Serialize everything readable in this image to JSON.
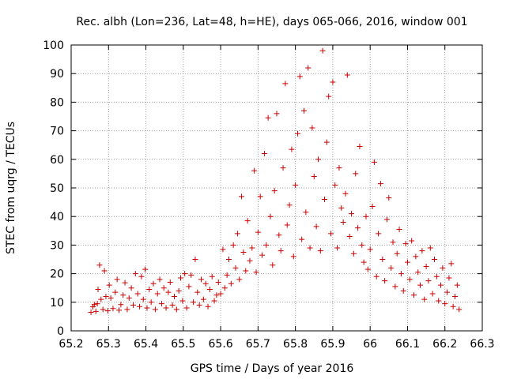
{
  "chart_data": {
    "type": "scatter",
    "title": "Rec. albh (Lon=236, Lat=48, h=HE), days 065-066, 2016, window 001",
    "xlabel": "GPS time / Days of year 2016",
    "ylabel": "STEC from uqrg / TECUs",
    "xlim": [
      65.2,
      66.3
    ],
    "ylim": [
      0,
      100
    ],
    "xticks": [
      "65.2",
      "65.3",
      "65.4",
      "65.5",
      "65.6",
      "65.7",
      "65.8",
      "65.9",
      "66",
      "66.1",
      "66.2",
      "66.3"
    ],
    "yticks": [
      "0",
      "10",
      "20",
      "30",
      "40",
      "50",
      "60",
      "70",
      "80",
      "90",
      "100"
    ],
    "grid": true,
    "marker": "+",
    "series": [
      {
        "color": "#cc0000",
        "points": [
          [
            65.253,
            6.5
          ],
          [
            65.258,
            8.4
          ],
          [
            65.262,
            9.2
          ],
          [
            65.266,
            6.8
          ],
          [
            65.27,
            9.5
          ],
          [
            65.272,
            14.5
          ],
          [
            65.276,
            23.0
          ],
          [
            65.28,
            11.0
          ],
          [
            65.285,
            7.5
          ],
          [
            65.289,
            21.0
          ],
          [
            65.293,
            12.0
          ],
          [
            65.298,
            7.0
          ],
          [
            65.302,
            16.0
          ],
          [
            65.306,
            11.5
          ],
          [
            65.312,
            7.8
          ],
          [
            65.318,
            13.5
          ],
          [
            65.323,
            18.0
          ],
          [
            65.328,
            7.2
          ],
          [
            65.333,
            9.2
          ],
          [
            65.339,
            12.5
          ],
          [
            65.344,
            16.8
          ],
          [
            65.35,
            7.5
          ],
          [
            65.355,
            11.5
          ],
          [
            65.361,
            15.0
          ],
          [
            65.366,
            9.0
          ],
          [
            65.372,
            20.0
          ],
          [
            65.378,
            13.0
          ],
          [
            65.383,
            8.5
          ],
          [
            65.388,
            19.0
          ],
          [
            65.393,
            11.0
          ],
          [
            65.398,
            21.5
          ],
          [
            65.403,
            8.0
          ],
          [
            65.409,
            14.5
          ],
          [
            65.414,
            10.0
          ],
          [
            65.42,
            16.5
          ],
          [
            65.425,
            7.5
          ],
          [
            65.431,
            13.0
          ],
          [
            65.437,
            18.0
          ],
          [
            65.442,
            9.5
          ],
          [
            65.448,
            15.0
          ],
          [
            65.454,
            8.0
          ],
          [
            65.46,
            13.5
          ],
          [
            65.465,
            17.0
          ],
          [
            65.471,
            9.0
          ],
          [
            65.476,
            12.0
          ],
          [
            65.482,
            7.5
          ],
          [
            65.488,
            14.0
          ],
          [
            65.493,
            18.5
          ],
          [
            65.498,
            10.5
          ],
          [
            65.504,
            20.0
          ],
          [
            65.509,
            8.0
          ],
          [
            65.515,
            15.5
          ],
          [
            65.521,
            19.5
          ],
          [
            65.527,
            10.0
          ],
          [
            65.532,
            25.0
          ],
          [
            65.538,
            13.5
          ],
          [
            65.543,
            9.0
          ],
          [
            65.548,
            18.0
          ],
          [
            65.554,
            11.0
          ],
          [
            65.56,
            16.5
          ],
          [
            65.566,
            8.5
          ],
          [
            65.571,
            14.5
          ],
          [
            65.577,
            19.0
          ],
          [
            65.583,
            10.5
          ],
          [
            65.589,
            12.5
          ],
          [
            65.594,
            17.0
          ],
          [
            65.6,
            13.0
          ],
          [
            65.606,
            28.5
          ],
          [
            65.611,
            15.0
          ],
          [
            65.617,
            19.5
          ],
          [
            65.622,
            25.0
          ],
          [
            65.628,
            16.5
          ],
          [
            65.634,
            30.0
          ],
          [
            65.64,
            22.0
          ],
          [
            65.645,
            34.0
          ],
          [
            65.65,
            18.0
          ],
          [
            65.656,
            47.0
          ],
          [
            65.661,
            27.5
          ],
          [
            65.667,
            21.0
          ],
          [
            65.672,
            38.5
          ],
          [
            65.678,
            24.5
          ],
          [
            65.684,
            29.0
          ],
          [
            65.69,
            56.0
          ],
          [
            65.695,
            20.5
          ],
          [
            65.7,
            34.5
          ],
          [
            65.706,
            47.0
          ],
          [
            65.711,
            26.5
          ],
          [
            65.717,
            62.0
          ],
          [
            65.722,
            30.0
          ],
          [
            65.727,
            74.5
          ],
          [
            65.733,
            40.0
          ],
          [
            65.739,
            23.0
          ],
          [
            65.744,
            49.0
          ],
          [
            65.75,
            76.0
          ],
          [
            65.756,
            33.5
          ],
          [
            65.761,
            28.0
          ],
          [
            65.767,
            57.0
          ],
          [
            65.773,
            86.5
          ],
          [
            65.778,
            37.0
          ],
          [
            65.784,
            44.0
          ],
          [
            65.79,
            63.5
          ],
          [
            65.795,
            26.0
          ],
          [
            65.8,
            51.0
          ],
          [
            65.806,
            69.0
          ],
          [
            65.812,
            89.0
          ],
          [
            65.817,
            32.0
          ],
          [
            65.823,
            77.0
          ],
          [
            65.828,
            41.5
          ],
          [
            65.834,
            92.0
          ],
          [
            65.839,
            29.0
          ],
          [
            65.845,
            71.0
          ],
          [
            65.85,
            54.0
          ],
          [
            65.856,
            36.5
          ],
          [
            65.861,
            60.0
          ],
          [
            65.867,
            28.0
          ],
          [
            65.873,
            98.0
          ],
          [
            65.878,
            46.0
          ],
          [
            65.884,
            66.0
          ],
          [
            65.889,
            82.0
          ],
          [
            65.895,
            34.0
          ],
          [
            65.9,
            87.0
          ],
          [
            65.906,
            51.0
          ],
          [
            65.912,
            29.0
          ],
          [
            65.917,
            57.0
          ],
          [
            65.923,
            43.0
          ],
          [
            65.928,
            38.0
          ],
          [
            65.934,
            48.0
          ],
          [
            65.939,
            89.5
          ],
          [
            65.945,
            33.0
          ],
          [
            65.95,
            41.0
          ],
          [
            65.956,
            27.0
          ],
          [
            65.961,
            55.0
          ],
          [
            65.967,
            36.0
          ],
          [
            65.972,
            64.5
          ],
          [
            65.978,
            30.0
          ],
          [
            65.983,
            24.0
          ],
          [
            65.989,
            40.0
          ],
          [
            65.994,
            21.5
          ],
          [
            66.0,
            28.5
          ],
          [
            66.006,
            43.5
          ],
          [
            66.011,
            59.0
          ],
          [
            66.017,
            19.0
          ],
          [
            66.022,
            34.0
          ],
          [
            66.028,
            51.5
          ],
          [
            66.033,
            25.0
          ],
          [
            66.039,
            17.5
          ],
          [
            66.045,
            39.0
          ],
          [
            66.05,
            46.5
          ],
          [
            66.056,
            22.0
          ],
          [
            66.061,
            31.0
          ],
          [
            66.067,
            15.5
          ],
          [
            66.072,
            27.0
          ],
          [
            66.078,
            35.5
          ],
          [
            66.083,
            20.0
          ],
          [
            66.089,
            14.0
          ],
          [
            66.095,
            30.5
          ],
          [
            66.1,
            24.0
          ],
          [
            66.106,
            18.0
          ],
          [
            66.111,
            31.5
          ],
          [
            66.117,
            12.5
          ],
          [
            66.122,
            26.0
          ],
          [
            66.128,
            20.5
          ],
          [
            66.134,
            16.0
          ],
          [
            66.139,
            28.0
          ],
          [
            66.145,
            11.0
          ],
          [
            66.15,
            22.5
          ],
          [
            66.156,
            17.5
          ],
          [
            66.161,
            29.0
          ],
          [
            66.167,
            13.0
          ],
          [
            66.172,
            25.0
          ],
          [
            66.178,
            19.0
          ],
          [
            66.183,
            10.5
          ],
          [
            66.189,
            16.0
          ],
          [
            66.194,
            22.0
          ],
          [
            66.2,
            9.5
          ],
          [
            66.206,
            13.5
          ],
          [
            66.211,
            18.5
          ],
          [
            66.217,
            23.5
          ],
          [
            66.222,
            8.5
          ],
          [
            66.227,
            12.0
          ],
          [
            66.233,
            16.0
          ],
          [
            66.238,
            7.5
          ]
        ]
      }
    ]
  }
}
